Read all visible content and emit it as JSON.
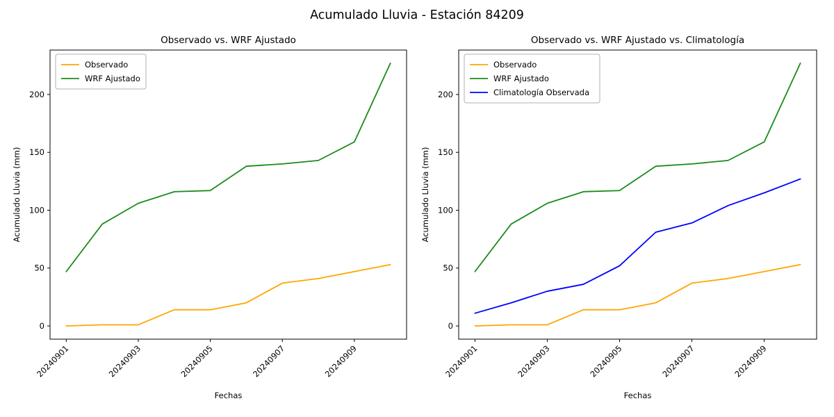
{
  "figure": {
    "title": "Acumulado Lluvia - Estación 84209",
    "background": "#ffffff"
  },
  "chart_data": [
    {
      "type": "line",
      "title": "Observado vs. WRF Ajustado",
      "xlabel": "Fechas",
      "ylabel": "Acumulado Lluvia (mm)",
      "categories": [
        "20240901",
        "20240902",
        "20240903",
        "20240904",
        "20240905",
        "20240906",
        "20240907",
        "20240908",
        "20240909",
        "20240910"
      ],
      "xtick_labels": [
        "20240901",
        "20240903",
        "20240905",
        "20240907",
        "20240909"
      ],
      "xtick_indices": [
        0,
        2,
        4,
        6,
        8
      ],
      "yticks": [
        0,
        50,
        100,
        150,
        200
      ],
      "ylim": [
        -11.4,
        238.4
      ],
      "grid": false,
      "legend_position": "upper left",
      "series": [
        {
          "name": "Observado",
          "color": "#ffa500",
          "values": [
            0,
            1,
            1,
            14,
            14,
            20,
            37,
            41,
            47,
            53
          ]
        },
        {
          "name": "WRF Ajustado",
          "color": "#1b8a1b",
          "values": [
            47,
            88,
            106,
            116,
            117,
            138,
            140,
            143,
            159,
            227
          ]
        }
      ]
    },
    {
      "type": "line",
      "title": "Observado vs. WRF Ajustado vs. Climatología",
      "xlabel": "Fechas",
      "ylabel": "Acumulado Lluvia (mm)",
      "categories": [
        "20240901",
        "20240902",
        "20240903",
        "20240904",
        "20240905",
        "20240906",
        "20240907",
        "20240908",
        "20240909",
        "20240910"
      ],
      "xtick_labels": [
        "20240901",
        "20240903",
        "20240905",
        "20240907",
        "20240909"
      ],
      "xtick_indices": [
        0,
        2,
        4,
        6,
        8
      ],
      "yticks": [
        0,
        50,
        100,
        150,
        200
      ],
      "ylim": [
        -11.4,
        238.4
      ],
      "grid": false,
      "legend_position": "upper left",
      "series": [
        {
          "name": "Observado",
          "color": "#ffa500",
          "values": [
            0,
            1,
            1,
            14,
            14,
            20,
            37,
            41,
            47,
            53
          ]
        },
        {
          "name": "WRF Ajustado",
          "color": "#1b8a1b",
          "values": [
            47,
            88,
            106,
            116,
            117,
            138,
            140,
            143,
            159,
            227
          ]
        },
        {
          "name": "Climatología Observada",
          "color": "#0000ff",
          "values": [
            11,
            20,
            30,
            36,
            52,
            81,
            89,
            104,
            115,
            127
          ]
        }
      ]
    }
  ]
}
